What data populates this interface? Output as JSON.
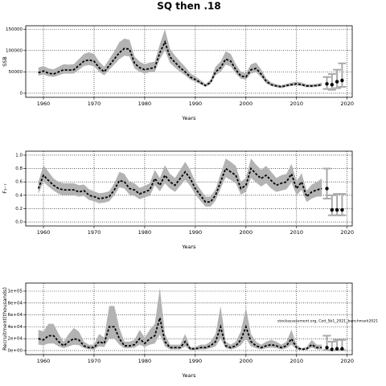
{
  "chart_data": [
    {
      "type": "line",
      "title": "SQ then .18",
      "xlabel": "Years",
      "ylabel": "SSB",
      "xlim": [
        1956.5,
        2021
      ],
      "xticks": [
        1960,
        1970,
        1980,
        1990,
        2000,
        2010,
        2020
      ],
      "ylim": [
        -9500,
        158000
      ],
      "yticks": [
        0,
        50000,
        100000,
        150000
      ],
      "grid": true,
      "line_color": "#000000",
      "band_color": "#b3b3b3",
      "projection_color": "#aaaaaa",
      "x": [
        1959,
        1960,
        1961,
        1962,
        1963,
        1964,
        1965,
        1966,
        1967,
        1968,
        1969,
        1970,
        1971,
        1972,
        1973,
        1974,
        1975,
        1976,
        1977,
        1978,
        1979,
        1980,
        1981,
        1982,
        1983,
        1984,
        1985,
        1986,
        1987,
        1988,
        1989,
        1990,
        1991,
        1992,
        1993,
        1994,
        1995,
        1996,
        1997,
        1998,
        1999,
        2000,
        2001,
        2002,
        2003,
        2004,
        2005,
        2006,
        2007,
        2008,
        2009,
        2010,
        2011,
        2012,
        2013,
        2014,
        2015
      ],
      "values": [
        48000,
        52000,
        47000,
        45000,
        50000,
        55000,
        54000,
        55000,
        65000,
        75000,
        78000,
        75000,
        60000,
        50000,
        65000,
        80000,
        95000,
        105000,
        103000,
        70000,
        60000,
        55000,
        58000,
        60000,
        95000,
        120000,
        85000,
        72000,
        60000,
        50000,
        38000,
        32000,
        25000,
        18000,
        25000,
        50000,
        60000,
        80000,
        75000,
        55000,
        40000,
        38000,
        55000,
        58000,
        45000,
        28000,
        20000,
        17000,
        15000,
        18000,
        20000,
        22000,
        20000,
        17000,
        17000,
        18000,
        20000
      ],
      "lower": [
        41000,
        44000,
        40000,
        38000,
        42000,
        46000,
        46000,
        46000,
        55000,
        64000,
        66000,
        63000,
        50000,
        42000,
        55000,
        67000,
        80000,
        88000,
        86000,
        58000,
        50000,
        46000,
        49000,
        50000,
        80000,
        100000,
        71000,
        60000,
        50000,
        42000,
        32000,
        27000,
        21000,
        15000,
        21000,
        42000,
        50000,
        67000,
        63000,
        46000,
        34000,
        32000,
        46000,
        49000,
        38000,
        23000,
        17000,
        14000,
        12000,
        15000,
        17000,
        18000,
        17000,
        14000,
        14000,
        15000,
        17000
      ],
      "upper": [
        60000,
        64000,
        58000,
        56000,
        62000,
        68000,
        67000,
        68000,
        80000,
        92000,
        96000,
        92000,
        74000,
        62000,
        80000,
        98000,
        120000,
        128000,
        125000,
        86000,
        74000,
        68000,
        72000,
        74000,
        115000,
        150000,
        104000,
        88000,
        74000,
        62000,
        47000,
        40000,
        31000,
        22000,
        31000,
        62000,
        74000,
        98000,
        92000,
        68000,
        50000,
        47000,
        68000,
        72000,
        56000,
        35000,
        25000,
        21000,
        19000,
        22000,
        25000,
        27000,
        25000,
        21000,
        21000,
        22000,
        25000
      ],
      "projection": {
        "x": [
          2016,
          2017,
          2018,
          2019
        ],
        "values": [
          22000,
          20000,
          27000,
          30000
        ],
        "lower": [
          10000,
          8000,
          12000,
          15000
        ],
        "upper": [
          38000,
          45000,
          55000,
          70000
        ]
      }
    },
    {
      "type": "line",
      "xlabel": "Years",
      "ylabel": "F₃₋₇",
      "xlim": [
        1956.5,
        2021
      ],
      "xticks": [
        1960,
        1970,
        1980,
        1990,
        2000,
        2010,
        2020
      ],
      "ylim": [
        -0.06,
        1.06
      ],
      "yticks": [
        {
          "value": 0,
          "label": "0.0"
        },
        0.2,
        0.4,
        0.6,
        0.8,
        {
          "value": 1,
          "label": "1.0"
        }
      ],
      "grid": true,
      "line_color": "#000000",
      "band_color": "#b3b3b3",
      "projection_color": "#aaaaaa",
      "x": [
        1959,
        1960,
        1961,
        1962,
        1963,
        1964,
        1965,
        1966,
        1967,
        1968,
        1969,
        1970,
        1971,
        1972,
        1973,
        1974,
        1975,
        1976,
        1977,
        1978,
        1979,
        1980,
        1981,
        1982,
        1983,
        1984,
        1985,
        1986,
        1987,
        1988,
        1989,
        1990,
        1991,
        1992,
        1993,
        1994,
        1995,
        1996,
        1997,
        1998,
        1999,
        2000,
        2001,
        2002,
        2003,
        2004,
        2005,
        2006,
        2007,
        2008,
        2009,
        2010,
        2011,
        2012,
        2013,
        2014,
        2015
      ],
      "values": [
        0.5,
        0.7,
        0.62,
        0.55,
        0.5,
        0.48,
        0.48,
        0.48,
        0.45,
        0.47,
        0.4,
        0.38,
        0.35,
        0.36,
        0.38,
        0.48,
        0.62,
        0.6,
        0.5,
        0.48,
        0.42,
        0.45,
        0.48,
        0.65,
        0.55,
        0.7,
        0.6,
        0.55,
        0.65,
        0.75,
        0.65,
        0.5,
        0.4,
        0.3,
        0.3,
        0.4,
        0.6,
        0.8,
        0.75,
        0.7,
        0.5,
        0.55,
        0.8,
        0.72,
        0.65,
        0.7,
        0.62,
        0.55,
        0.58,
        0.6,
        0.72,
        0.5,
        0.6,
        0.38,
        0.45,
        0.48,
        0.5
      ],
      "lower": [
        0.42,
        0.6,
        0.53,
        0.47,
        0.42,
        0.4,
        0.4,
        0.4,
        0.38,
        0.39,
        0.33,
        0.31,
        0.28,
        0.29,
        0.31,
        0.4,
        0.52,
        0.5,
        0.41,
        0.39,
        0.34,
        0.37,
        0.39,
        0.55,
        0.46,
        0.58,
        0.5,
        0.45,
        0.54,
        0.63,
        0.54,
        0.41,
        0.32,
        0.23,
        0.23,
        0.32,
        0.5,
        0.67,
        0.63,
        0.58,
        0.41,
        0.45,
        0.66,
        0.59,
        0.53,
        0.58,
        0.5,
        0.45,
        0.47,
        0.49,
        0.59,
        0.4,
        0.48,
        0.3,
        0.35,
        0.38,
        0.38
      ],
      "upper": [
        0.6,
        0.85,
        0.75,
        0.65,
        0.6,
        0.58,
        0.58,
        0.58,
        0.55,
        0.56,
        0.49,
        0.46,
        0.43,
        0.44,
        0.46,
        0.58,
        0.75,
        0.72,
        0.6,
        0.58,
        0.51,
        0.54,
        0.58,
        0.78,
        0.66,
        0.85,
        0.72,
        0.66,
        0.78,
        0.9,
        0.78,
        0.6,
        0.49,
        0.38,
        0.38,
        0.49,
        0.72,
        0.95,
        0.9,
        0.84,
        0.6,
        0.66,
        0.95,
        0.86,
        0.78,
        0.84,
        0.75,
        0.66,
        0.7,
        0.72,
        0.87,
        0.61,
        0.73,
        0.47,
        0.56,
        0.6,
        0.65
      ],
      "projection": {
        "x": [
          2016,
          2017,
          2018,
          2019
        ],
        "values": [
          0.5,
          0.18,
          0.18,
          0.18
        ],
        "lower": [
          0.35,
          0.1,
          0.1,
          0.1
        ],
        "upper": [
          0.8,
          0.4,
          0.42,
          0.42
        ]
      }
    },
    {
      "type": "line",
      "xlabel": "Years",
      "ylabel": "Recruitment(thousands)",
      "annotation": "stockassessment.org, Cod_5b1_2021_benchmark2021",
      "xlim": [
        1956.5,
        2021
      ],
      "xticks": [
        1960,
        1970,
        1980,
        1990,
        2000,
        2010,
        2020
      ],
      "ylim": [
        -6800,
        113500
      ],
      "yticks": [
        {
          "value": 0,
          "label": "0e+00"
        },
        {
          "value": 20000,
          "label": "2e+04"
        },
        {
          "value": 40000,
          "label": "4e+04"
        },
        {
          "value": 60000,
          "label": "6e+04"
        },
        {
          "value": 80000,
          "label": "8e+04"
        },
        {
          "value": 100000,
          "label": "1e+05"
        }
      ],
      "grid": true,
      "line_color": "#000000",
      "band_color": "#b3b3b3",
      "projection_color": "#aaaaaa",
      "x": [
        1959,
        1960,
        1961,
        1962,
        1963,
        1964,
        1965,
        1966,
        1967,
        1968,
        1969,
        1970,
        1971,
        1972,
        1973,
        1974,
        1975,
        1976,
        1977,
        1978,
        1979,
        1980,
        1981,
        1982,
        1983,
        1984,
        1985,
        1986,
        1987,
        1988,
        1989,
        1990,
        1991,
        1992,
        1993,
        1994,
        1995,
        1996,
        1997,
        1998,
        1999,
        2000,
        2001,
        2002,
        2003,
        2004,
        2005,
        2006,
        2007,
        2008,
        2009,
        2010,
        2011,
        2012,
        2013,
        2014,
        2015
      ],
      "values": [
        20000,
        18000,
        25000,
        25000,
        15000,
        8000,
        15000,
        20000,
        18000,
        8000,
        5000,
        5000,
        15000,
        12000,
        40000,
        40000,
        20000,
        8000,
        8000,
        10000,
        20000,
        12000,
        20000,
        25000,
        55000,
        15000,
        5000,
        5000,
        5000,
        15000,
        3000,
        3000,
        5000,
        5000,
        8000,
        15000,
        40000,
        8000,
        5000,
        8000,
        18000,
        40000,
        15000,
        8000,
        5000,
        8000,
        10000,
        8000,
        5000,
        8000,
        20000,
        5000,
        2000,
        3000,
        10000,
        5000,
        5000
      ],
      "lower": [
        10000,
        9000,
        12000,
        12000,
        7000,
        4000,
        7000,
        10000,
        9000,
        4000,
        2000,
        2000,
        7000,
        6000,
        20000,
        20000,
        10000,
        4000,
        4000,
        5000,
        10000,
        6000,
        10000,
        12000,
        27000,
        7000,
        2000,
        2000,
        2000,
        7000,
        1000,
        1000,
        2000,
        2000,
        4000,
        7000,
        20000,
        4000,
        2000,
        4000,
        9000,
        20000,
        7000,
        4000,
        2000,
        4000,
        5000,
        4000,
        2000,
        4000,
        10000,
        2000,
        1000,
        1000,
        5000,
        2000,
        2000
      ],
      "upper": [
        35000,
        32000,
        45000,
        45000,
        28000,
        15000,
        28000,
        38000,
        32000,
        15000,
        10000,
        10000,
        28000,
        22000,
        75000,
        75000,
        38000,
        15000,
        15000,
        18000,
        35000,
        22000,
        35000,
        45000,
        105000,
        28000,
        10000,
        10000,
        10000,
        28000,
        6000,
        6000,
        10000,
        10000,
        15000,
        28000,
        75000,
        15000,
        10000,
        15000,
        32000,
        72000,
        28000,
        15000,
        10000,
        15000,
        18000,
        15000,
        10000,
        15000,
        35000,
        10000,
        4000,
        6000,
        18000,
        10000,
        10000
      ],
      "projection": {
        "x": [
          2016,
          2017,
          2018,
          2019
        ],
        "values": [
          5000,
          2000,
          3000,
          3000
        ],
        "lower": [
          1000,
          500,
          800,
          800
        ],
        "upper": [
          25000,
          15000,
          18000,
          18000
        ]
      }
    }
  ]
}
